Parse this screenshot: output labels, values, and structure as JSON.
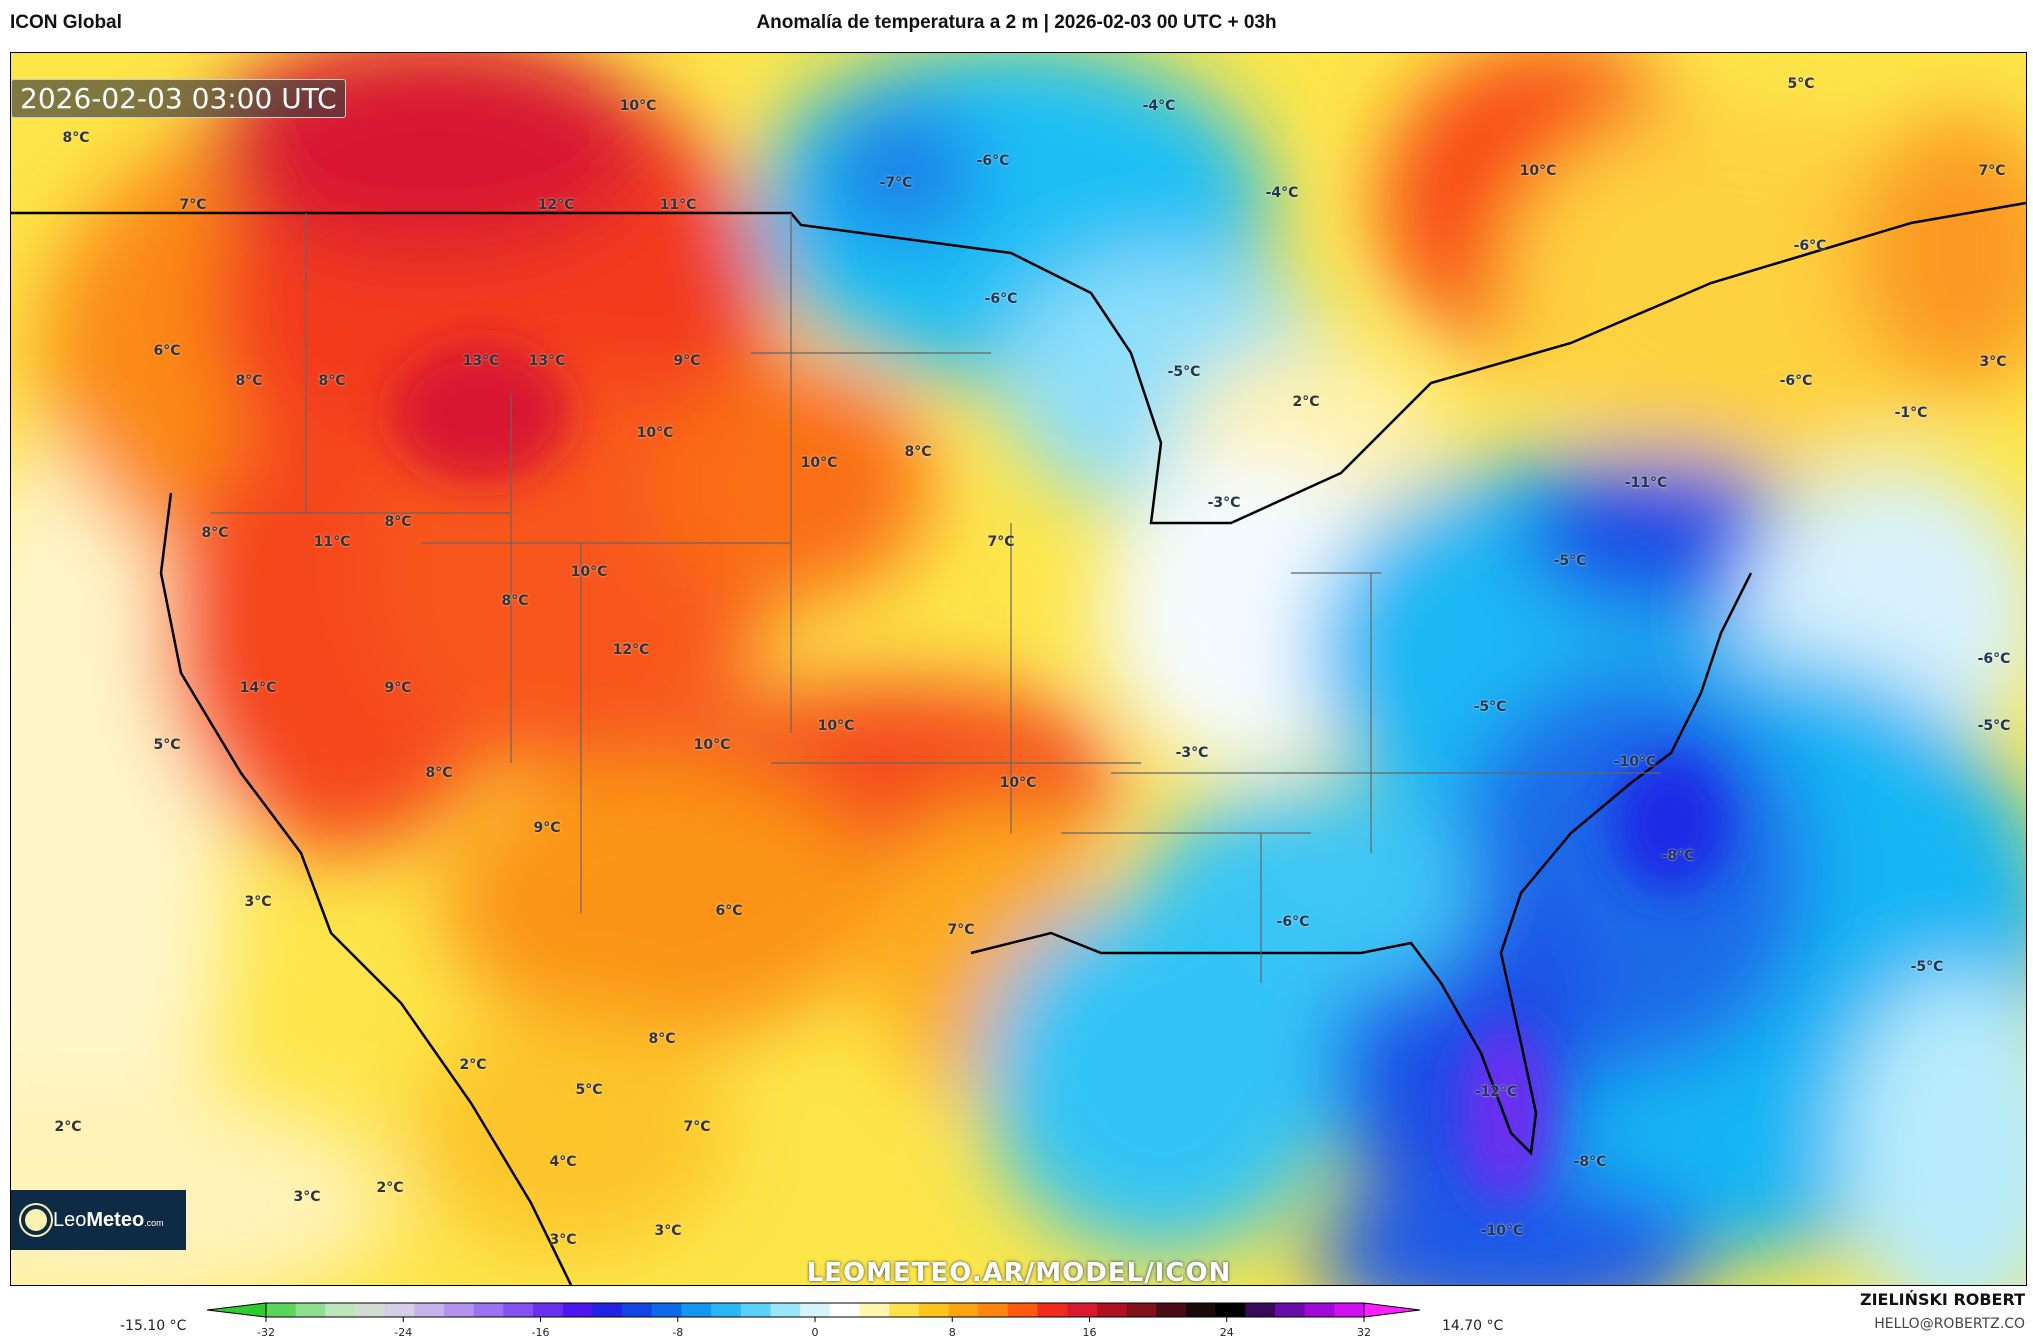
{
  "header": {
    "model": "ICON Global",
    "title": "Anomalía de temperatura a 2 m | 2026-02-03 00 UTC + 03h"
  },
  "map": {
    "valid_time": "2026-02-03 03:00 UTC",
    "watermark": "LEOMETEO.AR/MODEL/ICON",
    "logo": {
      "name": "LeoMeteo",
      "light": "Leo",
      "bold": "Meteo",
      "suffix": ".com"
    },
    "labels": [
      {
        "t": "8°C"
      },
      {
        "t": "10°C"
      },
      {
        "t": "12°C"
      },
      {
        "t": "11°C"
      },
      {
        "t": "7°C"
      },
      {
        "t": "-7°C"
      },
      {
        "t": "-6°C"
      },
      {
        "t": "-4°C"
      },
      {
        "t": "-4°C"
      },
      {
        "t": "10°C"
      },
      {
        "t": "5°C"
      },
      {
        "t": "7°C"
      },
      {
        "t": "-6°C"
      },
      {
        "t": "6°C"
      },
      {
        "t": "8°C"
      },
      {
        "t": "8°C"
      },
      {
        "t": "13°C"
      },
      {
        "t": "13°C"
      },
      {
        "t": "9°C"
      },
      {
        "t": "-6°C"
      },
      {
        "t": "-5°C"
      },
      {
        "t": "2°C"
      },
      {
        "t": "-6°C"
      },
      {
        "t": "3°C"
      },
      {
        "t": "-1°C"
      },
      {
        "t": "10°C"
      },
      {
        "t": "10°C"
      },
      {
        "t": "8°C"
      },
      {
        "t": "-11°C"
      },
      {
        "t": "8°C"
      },
      {
        "t": "11°C"
      },
      {
        "t": "8°C"
      },
      {
        "t": "-3°C"
      },
      {
        "t": "7°C"
      },
      {
        "t": "-5°C"
      },
      {
        "t": "10°C"
      },
      {
        "t": "8°C"
      },
      {
        "t": "12°C"
      },
      {
        "t": "14°C"
      },
      {
        "t": "9°C"
      },
      {
        "t": "-5°C"
      },
      {
        "t": "-6°C"
      },
      {
        "t": "-5°C"
      },
      {
        "t": "5°C"
      },
      {
        "t": "10°C"
      },
      {
        "t": "10°C"
      },
      {
        "t": "-3°C"
      },
      {
        "t": "-10°C"
      },
      {
        "t": "10°C"
      },
      {
        "t": "8°C"
      },
      {
        "t": "9°C"
      },
      {
        "t": "-8°C"
      },
      {
        "t": "3°C"
      },
      {
        "t": "6°C"
      },
      {
        "t": "-6°C"
      },
      {
        "t": "7°C"
      },
      {
        "t": "-5°C"
      },
      {
        "t": "8°C"
      },
      {
        "t": "2°C"
      },
      {
        "t": "5°C"
      },
      {
        "t": "-12°C"
      },
      {
        "t": "2°C"
      },
      {
        "t": "7°C"
      },
      {
        "t": "4°C"
      },
      {
        "t": "-8°C"
      },
      {
        "t": "3°C"
      },
      {
        "t": "2°C"
      },
      {
        "t": "3°C"
      },
      {
        "t": "-10°C"
      },
      {
        "t": "3°C"
      }
    ]
  },
  "colorbar": {
    "min_label": "-15.10 °C",
    "max_label": "14.70 °C",
    "ticks": [
      "-32",
      "-24",
      "-16",
      "-8",
      "0",
      "8",
      "16",
      "24",
      "32"
    ],
    "range": [
      -32,
      32
    ],
    "colors": [
      "#2ecc2e",
      "#5ad45a",
      "#8ee08e",
      "#bde6bd",
      "#d2dcd2",
      "#d6cde6",
      "#c6b2ec",
      "#b294f0",
      "#9a72f2",
      "#8452f4",
      "#6a30f2",
      "#4a18ee",
      "#2222e6",
      "#1444e6",
      "#0a6aea",
      "#1496f0",
      "#28b8f6",
      "#5cd2fa",
      "#9ae6fc",
      "#d4f4fe",
      "#ffffff",
      "#fff6b0",
      "#ffe24a",
      "#ffc41a",
      "#ffa410",
      "#ff8410",
      "#ff5a10",
      "#f22a1a",
      "#d81a30",
      "#b01020",
      "#80101a",
      "#4a0c14",
      "#1a0a0a",
      "#000000",
      "#3a0a5a",
      "#6a0ca8",
      "#a00ad8",
      "#d010f0",
      "#ff1eff"
    ]
  },
  "credits": {
    "author": "ZIELIŃSKI ROBERT",
    "email": "HELLO@ROBERTZ.CO"
  }
}
